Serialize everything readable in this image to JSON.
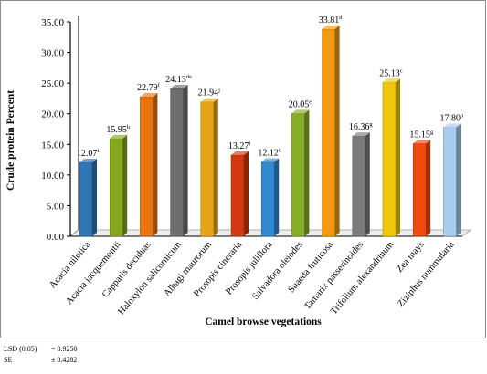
{
  "chart_data": {
    "type": "bar",
    "xlabel": "Camel browse vegetations",
    "ylabel": "Crude protein Percent",
    "ylim": [
      0,
      35
    ],
    "yticks": [
      "0.00",
      "5.00",
      "10.00",
      "15.00",
      "20.00",
      "25.00",
      "30.00",
      "35.00"
    ],
    "grid": false,
    "legend": "none",
    "categories": [
      "Acacia nilotica",
      "Acacia jacquemontii",
      "Capparis deciduas",
      "Haloxylon salicornicum",
      "Alhagi maurorum",
      "Prosopis cineraria",
      "Prosopis juliflora",
      "Salvadora oleiodes",
      "Suaeda fruticosa",
      "Tamarix passerinoides",
      "Trifolium alexandrinum",
      "Zea mays",
      "Ziziphus nummularia"
    ],
    "values": [
      12.07,
      15.95,
      22.79,
      24.13,
      21.94,
      13.27,
      12.12,
      20.05,
      33.81,
      16.36,
      25.13,
      15.15,
      17.8
    ],
    "value_labels": [
      "12.07",
      "15.95",
      "22.79",
      "24.13",
      "21.94",
      "13.27",
      "12.12",
      "20.05",
      "33.81",
      "16.36",
      "25.13",
      "15.15",
      "17.80"
    ],
    "letters": [
      "i",
      "h",
      "f",
      "de",
      "j",
      "i",
      "d",
      "e",
      "d",
      "g",
      "c",
      "g",
      "b"
    ],
    "colors": [
      "#2f76b4",
      "#86a820",
      "#e8740e",
      "#6d6d6d",
      "#e6a514",
      "#d13a10",
      "#3088d0",
      "#86ad26",
      "#f39a10",
      "#7a7a7a",
      "#f1c70c",
      "#ef4a0e",
      "#a8cdee"
    ]
  },
  "stats": {
    "lsd_label": "LSD (0.05)",
    "lsd_value": "= 0.9250",
    "se_label": "SE",
    "se_value": "± 0.4282"
  }
}
